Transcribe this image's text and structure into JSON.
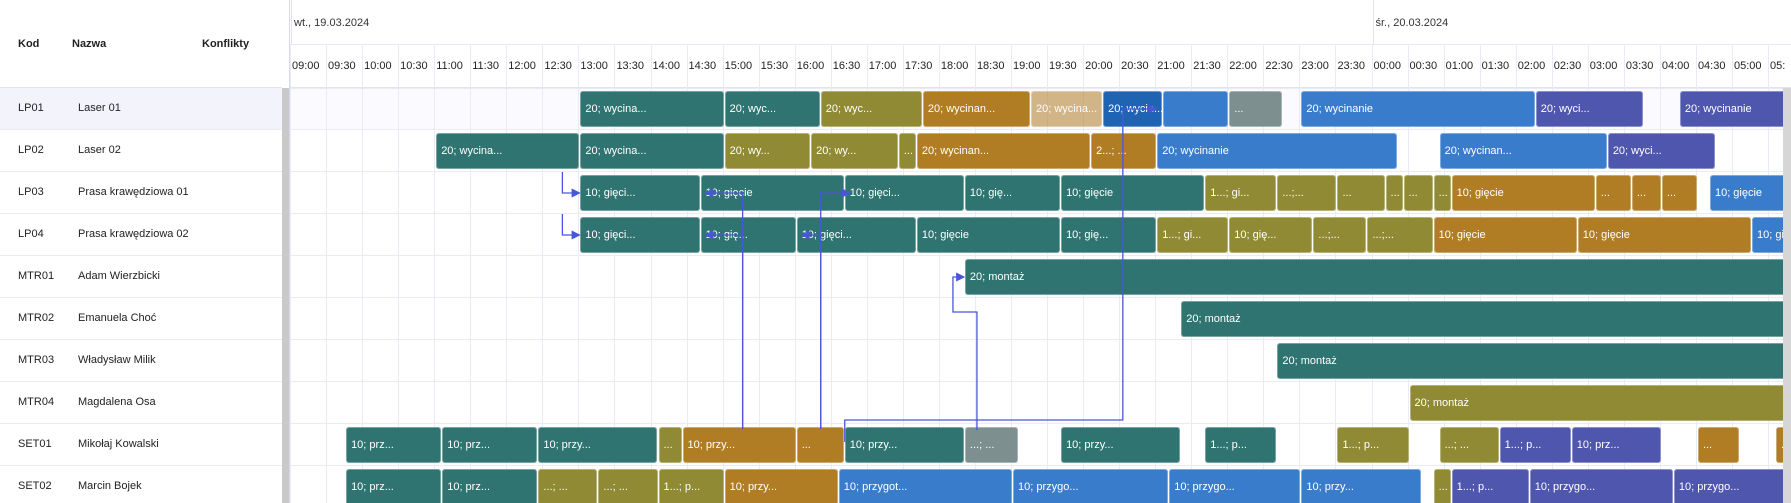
{
  "columns": {
    "code": "Kod",
    "name": "Nazwa",
    "conflicts": "Konflikty"
  },
  "resources": [
    {
      "code": "LP01",
      "name": "Laser 01"
    },
    {
      "code": "LP02",
      "name": "Laser 02"
    },
    {
      "code": "LP03",
      "name": "Prasa krawędziowa 01"
    },
    {
      "code": "LP04",
      "name": "Prasa krawędziowa 02"
    },
    {
      "code": "MTR01",
      "name": "Adam Wierzbicki"
    },
    {
      "code": "MTR02",
      "name": "Emanuela Choć"
    },
    {
      "code": "MTR03",
      "name": "Władysław Milik"
    },
    {
      "code": "MTR04",
      "name": "Magdalena Osa"
    },
    {
      "code": "SET01",
      "name": "Mikołaj Kowalski"
    },
    {
      "code": "SET02",
      "name": "Marcin Bojek"
    }
  ],
  "dates": [
    {
      "label": "wt., 19.03.2024",
      "start": "09:00"
    },
    {
      "label": "śr., 20.03.2024",
      "start": "24:00"
    }
  ],
  "time_ticks": [
    "09:00",
    "09:30",
    "10:00",
    "10:30",
    "11:00",
    "11:30",
    "12:00",
    "12:30",
    "13:00",
    "13:30",
    "14:00",
    "14:30",
    "15:00",
    "15:30",
    "16:00",
    "16:30",
    "17:00",
    "17:30",
    "18:00",
    "18:30",
    "19:00",
    "19:30",
    "20:00",
    "20:30",
    "21:00",
    "21:30",
    "22:00",
    "22:30",
    "23:00",
    "23:30",
    "00:00",
    "00:30",
    "01:00",
    "01:30",
    "02:00",
    "02:30",
    "03:00",
    "03:30",
    "04:00",
    "04:30",
    "05:00",
    "05:"
  ],
  "colors": {
    "teal": "#2f7470",
    "olive": "#8f8a33",
    "orange": "#b07d25",
    "blue": "#3a7ccc",
    "indigo": "#4f56ad",
    "grey": "#7d8f8f",
    "darkblue": "#1f63b3",
    "link": "#4a56d8"
  },
  "bars": [
    {
      "row": 0,
      "start": "13:00",
      "end": "15:00",
      "color": "teal",
      "label": "20; wycina..."
    },
    {
      "row": 0,
      "start": "15:00",
      "end": "16:20",
      "color": "teal",
      "label": "20; wyc..."
    },
    {
      "row": 0,
      "start": "16:20",
      "end": "17:45",
      "color": "olive",
      "label": "20; wyc..."
    },
    {
      "row": 0,
      "start": "17:45",
      "end": "19:15",
      "color": "orange",
      "label": "20; wycinan..."
    },
    {
      "row": 0,
      "start": "19:15",
      "end": "20:15",
      "color": "orange",
      "label": "20; wycina...",
      "opacity": 0.55
    },
    {
      "row": 0,
      "start": "20:15",
      "end": "21:05",
      "color": "darkblue",
      "label": "20; wycin..."
    },
    {
      "row": 0,
      "start": "21:05",
      "end": "22:00",
      "color": "blue",
      "label": ""
    },
    {
      "row": 0,
      "start": "22:00",
      "end": "22:45",
      "color": "grey",
      "label": "..."
    },
    {
      "row": 0,
      "start": "23:00",
      "end": "02:15",
      "color": "blue",
      "label": "20; wycinanie"
    },
    {
      "row": 0,
      "start": "02:15",
      "end": "03:45",
      "color": "indigo",
      "label": "20; wyci..."
    },
    {
      "row": 0,
      "start": "04:15",
      "end": "05:45",
      "color": "indigo",
      "label": "20; wycinanie"
    },
    {
      "row": 1,
      "start": "11:00",
      "end": "13:00",
      "color": "teal",
      "label": "20; wycina..."
    },
    {
      "row": 1,
      "start": "13:00",
      "end": "15:00",
      "color": "teal",
      "label": "20; wycina..."
    },
    {
      "row": 1,
      "start": "15:00",
      "end": "16:12",
      "color": "olive",
      "label": "20; wy..."
    },
    {
      "row": 1,
      "start": "16:12",
      "end": "17:25",
      "color": "olive",
      "label": "20; wy..."
    },
    {
      "row": 1,
      "start": "17:25",
      "end": "17:40",
      "color": "olive",
      "label": "..."
    },
    {
      "row": 1,
      "start": "17:40",
      "end": "20:05",
      "color": "orange",
      "label": "20; wycinan..."
    },
    {
      "row": 1,
      "start": "20:05",
      "end": "21:00",
      "color": "orange",
      "label": "2...; ..."
    },
    {
      "row": 1,
      "start": "21:00",
      "end": "00:20",
      "color": "blue",
      "label": "20; wycinanie"
    },
    {
      "row": 1,
      "start": "00:55",
      "end": "03:15",
      "color": "blue",
      "label": "20; wycinan..."
    },
    {
      "row": 1,
      "start": "03:15",
      "end": "04:45",
      "color": "indigo",
      "label": "20; wyci..."
    },
    {
      "row": 2,
      "start": "13:00",
      "end": "14:40",
      "color": "teal",
      "label": "10; gięci..."
    },
    {
      "row": 2,
      "start": "14:40",
      "end": "16:40",
      "color": "teal",
      "label": "10; gięcie"
    },
    {
      "row": 2,
      "start": "16:40",
      "end": "18:20",
      "color": "teal",
      "label": "10; gięci..."
    },
    {
      "row": 2,
      "start": "18:20",
      "end": "19:40",
      "color": "teal",
      "label": "10; gię..."
    },
    {
      "row": 2,
      "start": "19:40",
      "end": "21:40",
      "color": "teal",
      "label": "10; gięcie"
    },
    {
      "row": 2,
      "start": "21:40",
      "end": "22:40",
      "color": "olive",
      "label": "1...; gi..."
    },
    {
      "row": 2,
      "start": "22:40",
      "end": "23:30",
      "color": "olive",
      "label": "...;..."
    },
    {
      "row": 2,
      "start": "23:30",
      "end": "00:10",
      "color": "olive",
      "label": "..."
    },
    {
      "row": 2,
      "start": "00:10",
      "end": "00:25",
      "color": "olive",
      "label": "..."
    },
    {
      "row": 2,
      "start": "00:25",
      "end": "00:50",
      "color": "olive",
      "label": "..."
    },
    {
      "row": 2,
      "start": "00:50",
      "end": "01:05",
      "color": "olive",
      "label": "..."
    },
    {
      "row": 2,
      "start": "01:05",
      "end": "03:05",
      "color": "orange",
      "label": "10; gięcie"
    },
    {
      "row": 2,
      "start": "03:05",
      "end": "03:35",
      "color": "orange",
      "label": "..."
    },
    {
      "row": 2,
      "start": "03:35",
      "end": "04:00",
      "color": "orange",
      "label": "..."
    },
    {
      "row": 2,
      "start": "04:00",
      "end": "04:30",
      "color": "orange",
      "label": "..."
    },
    {
      "row": 2,
      "start": "04:40",
      "end": "05:55",
      "color": "blue",
      "label": "10; gięcie"
    },
    {
      "row": 3,
      "start": "13:00",
      "end": "14:40",
      "color": "teal",
      "label": "10; gięci..."
    },
    {
      "row": 3,
      "start": "14:40",
      "end": "16:00",
      "color": "teal",
      "label": "10; gię..."
    },
    {
      "row": 3,
      "start": "16:00",
      "end": "17:40",
      "color": "teal",
      "label": "10; gięci..."
    },
    {
      "row": 3,
      "start": "17:40",
      "end": "19:40",
      "color": "teal",
      "label": "10; gięcie"
    },
    {
      "row": 3,
      "start": "19:40",
      "end": "21:00",
      "color": "teal",
      "label": "10; gię..."
    },
    {
      "row": 3,
      "start": "21:00",
      "end": "22:00",
      "color": "olive",
      "label": "1...; gi..."
    },
    {
      "row": 3,
      "start": "22:00",
      "end": "23:10",
      "color": "olive",
      "label": "10; gię..."
    },
    {
      "row": 3,
      "start": "23:10",
      "end": "23:55",
      "color": "olive",
      "label": "...;..."
    },
    {
      "row": 3,
      "start": "23:55",
      "end": "00:50",
      "color": "olive",
      "label": "...;..."
    },
    {
      "row": 3,
      "start": "00:50",
      "end": "02:50",
      "color": "orange",
      "label": "10; gięcie"
    },
    {
      "row": 3,
      "start": "02:50",
      "end": "05:15",
      "color": "orange",
      "label": "10; gięcie"
    },
    {
      "row": 3,
      "start": "05:15",
      "end": "05:55",
      "color": "blue",
      "label": "10; gi..."
    },
    {
      "row": 4,
      "start": "18:20",
      "end": "05:55",
      "color": "teal",
      "label": "20; montaż"
    },
    {
      "row": 5,
      "start": "21:20",
      "end": "05:55",
      "color": "teal",
      "label": "20; montaż"
    },
    {
      "row": 6,
      "start": "22:40",
      "end": "05:55",
      "color": "teal",
      "label": "20; montaż"
    },
    {
      "row": 7,
      "start": "00:30",
      "end": "05:55",
      "color": "olive",
      "label": "20; montaż"
    },
    {
      "row": 8,
      "start": "09:45",
      "end": "11:05",
      "color": "teal",
      "label": "10; prz..."
    },
    {
      "row": 8,
      "start": "11:05",
      "end": "12:25",
      "color": "teal",
      "label": "10; prz..."
    },
    {
      "row": 8,
      "start": "12:25",
      "end": "14:05",
      "color": "teal",
      "label": "10; przy..."
    },
    {
      "row": 8,
      "start": "14:05",
      "end": "14:25",
      "color": "olive",
      "label": "..."
    },
    {
      "row": 8,
      "start": "14:25",
      "end": "16:00",
      "color": "orange",
      "label": "10; przy..."
    },
    {
      "row": 8,
      "start": "16:00",
      "end": "16:40",
      "color": "orange",
      "label": "..."
    },
    {
      "row": 8,
      "start": "16:40",
      "end": "18:20",
      "color": "teal",
      "label": "10; przy..."
    },
    {
      "row": 8,
      "start": "18:20",
      "end": "19:05",
      "color": "grey",
      "label": "...; ..."
    },
    {
      "row": 8,
      "start": "19:40",
      "end": "21:20",
      "color": "teal",
      "label": "10; przy..."
    },
    {
      "row": 8,
      "start": "21:40",
      "end": "22:40",
      "color": "teal",
      "label": "1...; p..."
    },
    {
      "row": 8,
      "start": "23:30",
      "end": "00:30",
      "color": "olive",
      "label": "1...; p..."
    },
    {
      "row": 8,
      "start": "00:55",
      "end": "01:45",
      "color": "olive",
      "label": "...; ..."
    },
    {
      "row": 8,
      "start": "01:45",
      "end": "02:45",
      "color": "indigo",
      "label": "1...; p..."
    },
    {
      "row": 8,
      "start": "02:45",
      "end": "04:00",
      "color": "indigo",
      "label": "10; prz..."
    },
    {
      "row": 8,
      "start": "04:30",
      "end": "05:05",
      "color": "orange",
      "label": "..."
    },
    {
      "row": 8,
      "start": "05:35",
      "end": "05:55",
      "color": "orange",
      "label": "..."
    },
    {
      "row": 9,
      "start": "09:45",
      "end": "11:05",
      "color": "teal",
      "label": "10; prz..."
    },
    {
      "row": 9,
      "start": "11:05",
      "end": "12:25",
      "color": "teal",
      "label": "10; prz..."
    },
    {
      "row": 9,
      "start": "12:25",
      "end": "13:15",
      "color": "olive",
      "label": "...; ..."
    },
    {
      "row": 9,
      "start": "13:15",
      "end": "14:05",
      "color": "olive",
      "label": "...; ..."
    },
    {
      "row": 9,
      "start": "14:05",
      "end": "15:00",
      "color": "olive",
      "label": "1...; p..."
    },
    {
      "row": 9,
      "start": "15:00",
      "end": "16:35",
      "color": "orange",
      "label": "10; przy..."
    },
    {
      "row": 9,
      "start": "16:35",
      "end": "19:00",
      "color": "blue",
      "label": "10; przygot..."
    },
    {
      "row": 9,
      "start": "19:00",
      "end": "21:10",
      "color": "blue",
      "label": "10; przygo..."
    },
    {
      "row": 9,
      "start": "21:10",
      "end": "23:00",
      "color": "blue",
      "label": "10; przygo..."
    },
    {
      "row": 9,
      "start": "23:00",
      "end": "00:40",
      "color": "blue",
      "label": "10; przy..."
    },
    {
      "row": 9,
      "start": "00:50",
      "end": "01:05",
      "color": "olive",
      "label": "..."
    },
    {
      "row": 9,
      "start": "01:05",
      "end": "02:10",
      "color": "indigo",
      "label": "1...; p..."
    },
    {
      "row": 9,
      "start": "02:10",
      "end": "04:10",
      "color": "indigo",
      "label": "10; przygo..."
    },
    {
      "row": 9,
      "start": "04:10",
      "end": "05:55",
      "color": "indigo",
      "label": "10; przygo..."
    }
  ],
  "links": [
    {
      "from_row": 2,
      "from_time": "12:45",
      "to_row": 2,
      "to_time": "13:00",
      "via_row_offset": -0.42
    },
    {
      "from_row": 3,
      "from_time": "12:45",
      "to_row": 3,
      "to_time": "13:00",
      "via_row_offset": -0.42
    },
    {
      "from_row": 8,
      "from_time": "15:15",
      "to_row": 2,
      "to_time": "14:45"
    },
    {
      "from_row": 8,
      "from_time": "15:15",
      "to_row": 3,
      "to_time": "14:45"
    },
    {
      "from_row": 8,
      "from_time": "16:20",
      "to_row": 3,
      "to_time": "16:05"
    },
    {
      "from_row": 8,
      "from_time": "16:20",
      "to_row": 2,
      "to_time": "16:45"
    },
    {
      "from_row": 8,
      "from_time": "17:20",
      "to_row": 0,
      "to_time": "21:00"
    },
    {
      "from_row": 8,
      "from_time": "18:40",
      "to_row": 4,
      "to_time": "18:20"
    }
  ]
}
